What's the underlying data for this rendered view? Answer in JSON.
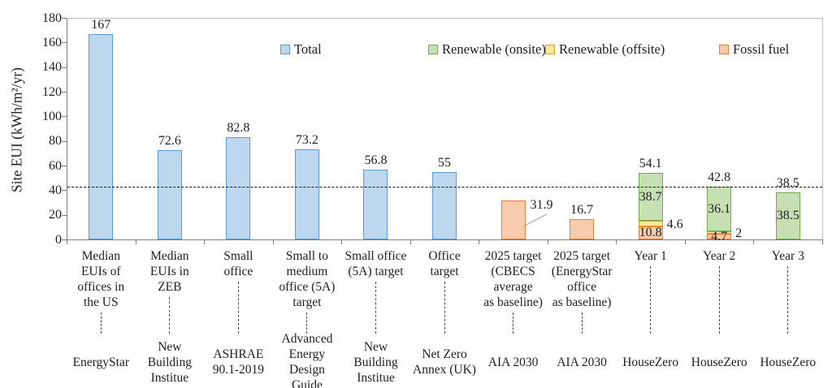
{
  "chart_data": {
    "type": "bar",
    "stacked": true,
    "title": "",
    "xlabel": "",
    "ylabel": "Site EUI (kWh/m²/yr)",
    "ylim": [
      0,
      180
    ],
    "ytick_step": 20,
    "grid": false,
    "legend_position": "top-inside",
    "reference_line": {
      "value": 43,
      "style": "dashed",
      "color": "#1a1a1a"
    },
    "series": {
      "total": {
        "label": "Total",
        "fill": "#BDD7EE",
        "border": "#5B9BD5"
      },
      "onsite": {
        "label": "Renewable (onsite)",
        "fill": "#C6E0B4",
        "border": "#70AD47"
      },
      "offsite": {
        "label": "Renewable (offsite)",
        "fill": "#FFE699",
        "border": "#D9A420"
      },
      "fossil": {
        "label": "Fossil fuel",
        "fill": "#F8CBAD",
        "border": "#ED7D31"
      }
    },
    "legend_order": [
      "total",
      "onsite",
      "offsite",
      "fossil"
    ],
    "categories": [
      {
        "label": "Median\nEUIs of\noffices in\nthe US",
        "source": "EnergyStar",
        "total": 167,
        "total_label": "167",
        "total_label_style": "above",
        "stack": [
          {
            "series": "total",
            "value": 167
          }
        ]
      },
      {
        "label": "Median\nEUIs in\nZEB",
        "source": "New\nBuilding\nInstitue",
        "total": 72.6,
        "total_label": "72.6",
        "total_label_style": "above",
        "stack": [
          {
            "series": "total",
            "value": 72.6
          }
        ]
      },
      {
        "label": "Small\noffice",
        "source": "ASHRAE\n90.1-2019",
        "total": 82.8,
        "total_label": "82.8",
        "total_label_style": "above",
        "stack": [
          {
            "series": "total",
            "value": 82.8
          }
        ]
      },
      {
        "label": "Small to\nmedium\noffice (5A)\ntarget",
        "source": "Advanced\nEnergy\nDesign\nGuide",
        "total": 73.2,
        "total_label": "73.2",
        "total_label_style": "above",
        "stack": [
          {
            "series": "total",
            "value": 73.2
          }
        ]
      },
      {
        "label": "Small office\n(5A) target",
        "source": "New\nBuilding\nInstitue",
        "total": 56.8,
        "total_label": "56.8",
        "total_label_style": "above",
        "stack": [
          {
            "series": "total",
            "value": 56.8
          }
        ]
      },
      {
        "label": "Office\ntarget",
        "source": "Net Zero\nAnnex (UK)",
        "total": 55,
        "total_label": "55",
        "total_label_style": "above",
        "stack": [
          {
            "series": "total",
            "value": 55
          }
        ]
      },
      {
        "label": "2025 target\n(CBECS\naverage\nas baseline)",
        "source": "AIA 2030",
        "total": 31.9,
        "total_label": "31.9",
        "total_label_style": "leader-right",
        "stack": [
          {
            "series": "fossil",
            "value": 31.9
          }
        ]
      },
      {
        "label": "2025 target\n(EnergyStar\noffice\nas baseline)",
        "source": "AIA 2030",
        "total": 16.7,
        "total_label": "16.7",
        "total_label_style": "above",
        "stack": [
          {
            "series": "fossil",
            "value": 16.7
          }
        ]
      },
      {
        "label": "Year 1",
        "source": "HouseZero",
        "total": 54.1,
        "total_label": "54.1",
        "total_label_style": "above",
        "stack": [
          {
            "series": "fossil",
            "value": 10.8,
            "label": "10.8",
            "label_pos": "inside"
          },
          {
            "series": "offsite",
            "value": 4.6,
            "label": "4.6",
            "label_pos": "right"
          },
          {
            "series": "onsite",
            "value": 38.7,
            "label": "38.7",
            "label_pos": "inside"
          }
        ]
      },
      {
        "label": "Year 2",
        "source": "HouseZero",
        "total": 42.8,
        "total_label": "42.8",
        "total_label_style": "above",
        "stack": [
          {
            "series": "fossil",
            "value": 4.7,
            "label": "4.7",
            "label_pos": "inside"
          },
          {
            "series": "offsite",
            "value": 2,
            "label": "2",
            "label_pos": "right"
          },
          {
            "series": "onsite",
            "value": 36.1,
            "label": "36.1",
            "label_pos": "inside"
          }
        ]
      },
      {
        "label": "Year 3",
        "source": "HouseZero",
        "total": 38.5,
        "total_label": "38.5",
        "total_label_style": "above",
        "stack": [
          {
            "series": "onsite",
            "value": 38.5,
            "label": "38.5",
            "label_pos": "inside"
          }
        ]
      }
    ]
  }
}
